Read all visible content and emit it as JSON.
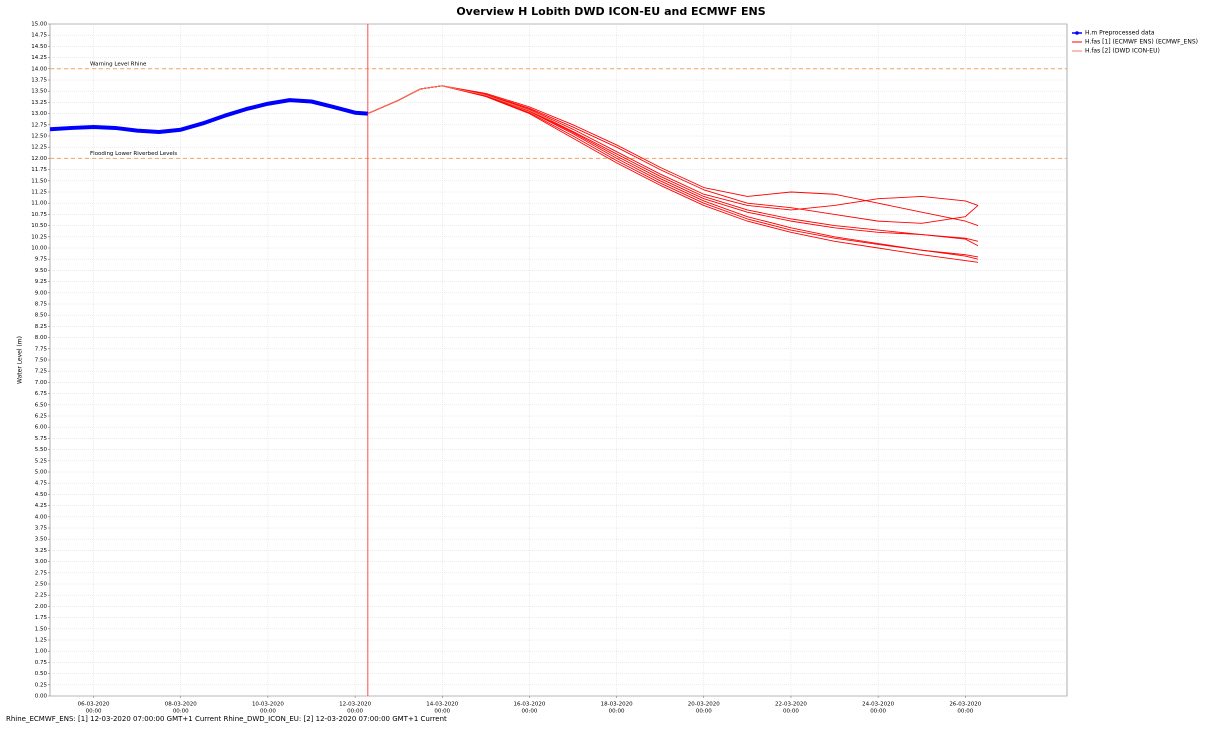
{
  "chart_data": {
    "type": "line",
    "title": "Overview H Lobith DWD ICON-EU and ECMWF ENS",
    "y_label": "Water Level (m)",
    "footer": "Rhine_ECMWF_ENS: [1] 12-03-2020 07:00:00 GMT+1 Current Rhine_DWD_ICON_EU: [2] 12-03-2020 07:00:00 GMT+1 Current",
    "xlim": [
      "2020-03-05T00:00",
      "2020-03-28T08:00"
    ],
    "ylim": [
      0,
      15
    ],
    "grid": true,
    "legend": "right",
    "forecast_time": "2020-03-12T07:00",
    "forecast_line_color": "#ff4d4d",
    "reference_line_color": "#f4a460",
    "reference_lines": [
      {
        "value": 14,
        "label": "Warning Level Rhine"
      },
      {
        "value": 12,
        "label": "Flooding Lower Riverbed Levels"
      }
    ],
    "xticks": [
      {
        "value": "2020-03-06T00:00",
        "label": [
          "06-03-2020",
          "00:00"
        ]
      },
      {
        "value": "2020-03-08T00:00",
        "label": [
          "08-03-2020",
          "00:00"
        ]
      },
      {
        "value": "2020-03-10T00:00",
        "label": [
          "10-03-2020",
          "00:00"
        ]
      },
      {
        "value": "2020-03-12T00:00",
        "label": [
          "12-03-2020",
          "00:00"
        ]
      },
      {
        "value": "2020-03-14T00:00",
        "label": [
          "14-03-2020",
          "00:00"
        ]
      },
      {
        "value": "2020-03-16T00:00",
        "label": [
          "16-03-2020",
          "00:00"
        ]
      },
      {
        "value": "2020-03-18T00:00",
        "label": [
          "18-03-2020",
          "00:00"
        ]
      },
      {
        "value": "2020-03-20T00:00",
        "label": [
          "20-03-2020",
          "00:00"
        ]
      },
      {
        "value": "2020-03-22T00:00",
        "label": [
          "22-03-2020",
          "00:00"
        ]
      },
      {
        "value": "2020-03-24T00:00",
        "label": [
          "24-03-2020",
          "00:00"
        ]
      },
      {
        "value": "2020-03-26T00:00",
        "label": [
          "26-03-2020",
          "00:00"
        ]
      }
    ],
    "yticks": [
      {
        "value": 0,
        "label": "0.00"
      },
      {
        "value": 0.25,
        "label": "0.25"
      },
      {
        "value": 0.5,
        "label": "0.50"
      },
      {
        "value": 0.75,
        "label": "0.75"
      },
      {
        "value": 1,
        "label": "1.00"
      },
      {
        "value": 1.25,
        "label": "1.25"
      },
      {
        "value": 1.5,
        "label": "1.50"
      },
      {
        "value": 1.75,
        "label": "1.75"
      },
      {
        "value": 2,
        "label": "2.00"
      },
      {
        "value": 2.25,
        "label": "2.25"
      },
      {
        "value": 2.5,
        "label": "2.50"
      },
      {
        "value": 2.75,
        "label": "2.75"
      },
      {
        "value": 3,
        "label": "3.00"
      },
      {
        "value": 3.25,
        "label": "3.25"
      },
      {
        "value": 3.5,
        "label": "3.50"
      },
      {
        "value": 3.75,
        "label": "3.75"
      },
      {
        "value": 4,
        "label": "4.00"
      },
      {
        "value": 4.25,
        "label": "4.25"
      },
      {
        "value": 4.5,
        "label": "4.50"
      },
      {
        "value": 4.75,
        "label": "4.75"
      },
      {
        "value": 5,
        "label": "5.00"
      },
      {
        "value": 5.25,
        "label": "5.25"
      },
      {
        "value": 5.5,
        "label": "5.50"
      },
      {
        "value": 5.75,
        "label": "5.75"
      },
      {
        "value": 6,
        "label": "6.00"
      },
      {
        "value": 6.25,
        "label": "6.25"
      },
      {
        "value": 6.5,
        "label": "6.50"
      },
      {
        "value": 6.75,
        "label": "6.75"
      },
      {
        "value": 7,
        "label": "7.00"
      },
      {
        "value": 7.25,
        "label": "7.25"
      },
      {
        "value": 7.5,
        "label": "7.50"
      },
      {
        "value": 7.75,
        "label": "7.75"
      },
      {
        "value": 8,
        "label": "8.00"
      },
      {
        "value": 8.25,
        "label": "8.25"
      },
      {
        "value": 8.5,
        "label": "8.50"
      },
      {
        "value": 8.75,
        "label": "8.75"
      },
      {
        "value": 9,
        "label": "9.00"
      },
      {
        "value": 9.25,
        "label": "9.25"
      },
      {
        "value": 9.5,
        "label": "9.50"
      },
      {
        "value": 9.75,
        "label": "9.75"
      },
      {
        "value": 10,
        "label": "10.00"
      },
      {
        "value": 10.25,
        "label": "10.25"
      },
      {
        "value": 10.5,
        "label": "10.50"
      },
      {
        "value": 10.75,
        "label": "10.75"
      },
      {
        "value": 11,
        "label": "11.00"
      },
      {
        "value": 11.25,
        "label": "11.25"
      },
      {
        "value": 11.5,
        "label": "11.50"
      },
      {
        "value": 11.75,
        "label": "11.75"
      },
      {
        "value": 12,
        "label": "12.00"
      },
      {
        "value": 12.25,
        "label": "12.25"
      },
      {
        "value": 12.5,
        "label": "12.50"
      },
      {
        "value": 12.75,
        "label": "12.75"
      },
      {
        "value": 13,
        "label": "13.00"
      },
      {
        "value": 13.25,
        "label": "13.25"
      },
      {
        "value": 13.5,
        "label": "13.50"
      },
      {
        "value": 13.75,
        "label": "13.75"
      },
      {
        "value": 14,
        "label": "14.00"
      },
      {
        "value": 14.25,
        "label": "14.25"
      },
      {
        "value": 14.5,
        "label": "14.50"
      },
      {
        "value": 14.75,
        "label": "14.75"
      },
      {
        "value": 15,
        "label": "15.00"
      }
    ],
    "series": [
      {
        "name": "H.m Preprocessed data",
        "color": "#0000ff",
        "width": 4,
        "marker": true,
        "members": [
          {
            "x": [
              "2020-03-05T00:00",
              "2020-03-05T12:00",
              "2020-03-06T00:00",
              "2020-03-06T12:00",
              "2020-03-07T00:00",
              "2020-03-07T12:00",
              "2020-03-08T00:00",
              "2020-03-08T12:00",
              "2020-03-09T00:00",
              "2020-03-09T12:00",
              "2020-03-10T00:00",
              "2020-03-10T12:00",
              "2020-03-11T00:00",
              "2020-03-11T12:00",
              "2020-03-12T00:00",
              "2020-03-12T07:00"
            ],
            "values": [
              12.65,
              12.68,
              12.7,
              12.68,
              12.62,
              12.59,
              12.64,
              12.78,
              12.95,
              13.1,
              13.22,
              13.3,
              13.27,
              13.15,
              13.02,
              13.0
            ]
          }
        ]
      },
      {
        "name": "H.fas [1] (ECMWF ENS)  (ECMWF_ENS)",
        "color": "#ff0000",
        "width": 0.9,
        "members": [
          {
            "x": [
              "2020-03-12T07:00",
              "2020-03-13T00:00",
              "2020-03-13T12:00",
              "2020-03-14T00:00",
              "2020-03-15T00:00",
              "2020-03-16T00:00",
              "2020-03-17T00:00",
              "2020-03-18T00:00",
              "2020-03-19T00:00",
              "2020-03-20T00:00",
              "2020-03-21T00:00",
              "2020-03-22T00:00",
              "2020-03-23T00:00",
              "2020-03-24T00:00",
              "2020-03-25T00:00",
              "2020-03-26T00:00",
              "2020-03-26T07:00"
            ],
            "values": [
              13.0,
              13.3,
              13.55,
              13.62,
              13.4,
              13.05,
              12.55,
              12.0,
              11.5,
              11.05,
              10.7,
              10.45,
              10.25,
              10.1,
              9.95,
              9.82,
              9.75
            ]
          },
          {
            "x": [
              "2020-03-12T07:00",
              "2020-03-13T00:00",
              "2020-03-13T12:00",
              "2020-03-14T00:00",
              "2020-03-15T00:00",
              "2020-03-16T00:00",
              "2020-03-17T00:00",
              "2020-03-18T00:00",
              "2020-03-19T00:00",
              "2020-03-20T00:00",
              "2020-03-21T00:00",
              "2020-03-22T00:00",
              "2020-03-23T00:00",
              "2020-03-24T00:00",
              "2020-03-25T00:00",
              "2020-03-26T00:00",
              "2020-03-26T07:00"
            ],
            "values": [
              13.0,
              13.3,
              13.55,
              13.62,
              13.42,
              13.1,
              12.65,
              12.15,
              11.65,
              11.2,
              10.95,
              10.85,
              10.95,
              11.1,
              11.15,
              11.05,
              10.95
            ]
          },
          {
            "x": [
              "2020-03-12T07:00",
              "2020-03-13T00:00",
              "2020-03-13T12:00",
              "2020-03-14T00:00",
              "2020-03-15T00:00",
              "2020-03-16T00:00",
              "2020-03-17T00:00",
              "2020-03-18T00:00",
              "2020-03-19T00:00",
              "2020-03-20T00:00",
              "2020-03-21T00:00",
              "2020-03-22T00:00",
              "2020-03-23T00:00",
              "2020-03-24T00:00",
              "2020-03-25T00:00",
              "2020-03-26T00:00",
              "2020-03-26T07:00"
            ],
            "values": [
              13.0,
              13.3,
              13.55,
              13.62,
              13.38,
              13.0,
              12.45,
              11.9,
              11.4,
              10.95,
              10.6,
              10.35,
              10.15,
              10.0,
              9.85,
              9.72,
              9.68
            ]
          },
          {
            "x": [
              "2020-03-12T07:00",
              "2020-03-13T00:00",
              "2020-03-13T12:00",
              "2020-03-14T00:00",
              "2020-03-15T00:00",
              "2020-03-16T00:00",
              "2020-03-17T00:00",
              "2020-03-18T00:00",
              "2020-03-19T00:00",
              "2020-03-20T00:00",
              "2020-03-21T00:00",
              "2020-03-22T00:00",
              "2020-03-23T00:00",
              "2020-03-24T00:00",
              "2020-03-25T00:00",
              "2020-03-26T00:00",
              "2020-03-26T07:00"
            ],
            "values": [
              13.0,
              13.3,
              13.55,
              13.62,
              13.45,
              13.15,
              12.75,
              12.3,
              11.8,
              11.35,
              11.15,
              11.25,
              11.2,
              11.0,
              10.8,
              10.6,
              10.5
            ]
          },
          {
            "x": [
              "2020-03-12T07:00",
              "2020-03-13T00:00",
              "2020-03-13T12:00",
              "2020-03-14T00:00",
              "2020-03-15T00:00",
              "2020-03-16T00:00",
              "2020-03-17T00:00",
              "2020-03-18T00:00",
              "2020-03-19T00:00",
              "2020-03-20T00:00",
              "2020-03-21T00:00",
              "2020-03-22T00:00",
              "2020-03-23T00:00",
              "2020-03-24T00:00",
              "2020-03-25T00:00",
              "2020-03-26T00:00",
              "2020-03-26T07:00"
            ],
            "values": [
              13.0,
              13.3,
              13.55,
              13.62,
              13.4,
              13.08,
              12.6,
              12.1,
              11.6,
              11.15,
              10.85,
              10.65,
              10.5,
              10.4,
              10.3,
              10.22,
              10.15
            ]
          },
          {
            "x": [
              "2020-03-12T07:00",
              "2020-03-13T00:00",
              "2020-03-13T12:00",
              "2020-03-14T00:00",
              "2020-03-15T00:00",
              "2020-03-16T00:00",
              "2020-03-17T00:00",
              "2020-03-18T00:00",
              "2020-03-19T00:00",
              "2020-03-20T00:00",
              "2020-03-21T00:00",
              "2020-03-22T00:00",
              "2020-03-23T00:00",
              "2020-03-24T00:00",
              "2020-03-25T00:00",
              "2020-03-26T00:00",
              "2020-03-26T07:00"
            ],
            "values": [
              13.0,
              13.3,
              13.55,
              13.62,
              13.43,
              13.12,
              12.7,
              12.25,
              11.75,
              11.3,
              11.0,
              10.9,
              10.75,
              10.6,
              10.55,
              10.7,
              10.95
            ]
          },
          {
            "x": [
              "2020-03-12T07:00",
              "2020-03-13T00:00",
              "2020-03-13T12:00",
              "2020-03-14T00:00",
              "2020-03-15T00:00",
              "2020-03-16T00:00",
              "2020-03-17T00:00",
              "2020-03-18T00:00",
              "2020-03-19T00:00",
              "2020-03-20T00:00",
              "2020-03-21T00:00",
              "2020-03-22T00:00",
              "2020-03-23T00:00",
              "2020-03-24T00:00",
              "2020-03-25T00:00",
              "2020-03-26T00:00",
              "2020-03-26T07:00"
            ],
            "values": [
              13.0,
              13.3,
              13.55,
              13.62,
              13.39,
              13.02,
              12.5,
              11.95,
              11.45,
              11.0,
              10.65,
              10.4,
              10.22,
              10.08,
              9.95,
              9.85,
              9.8
            ]
          },
          {
            "x": [
              "2020-03-12T07:00",
              "2020-03-13T00:00",
              "2020-03-13T12:00",
              "2020-03-14T00:00",
              "2020-03-15T00:00",
              "2020-03-16T00:00",
              "2020-03-17T00:00",
              "2020-03-18T00:00",
              "2020-03-19T00:00",
              "2020-03-20T00:00",
              "2020-03-21T00:00",
              "2020-03-22T00:00",
              "2020-03-23T00:00",
              "2020-03-24T00:00",
              "2020-03-25T00:00",
              "2020-03-26T00:00",
              "2020-03-26T07:00"
            ],
            "values": [
              13.0,
              13.3,
              13.55,
              13.62,
              13.41,
              13.06,
              12.58,
              12.05,
              11.55,
              11.1,
              10.8,
              10.6,
              10.45,
              10.35,
              10.3,
              10.2,
              10.05
            ]
          }
        ]
      },
      {
        "name": "H.fas [2] (DWD ICON-EU)",
        "color": "#f08060",
        "width": 0.9,
        "members": [
          {
            "x": [
              "2020-03-12T07:00",
              "2020-03-13T00:00",
              "2020-03-13T12:00",
              "2020-03-14T00:00",
              "2020-03-15T00:00",
              "2020-03-16T00:00",
              "2020-03-16T12:00"
            ],
            "values": [
              13.0,
              13.3,
              13.55,
              13.62,
              13.41,
              13.07,
              12.85
            ]
          }
        ]
      }
    ]
  }
}
